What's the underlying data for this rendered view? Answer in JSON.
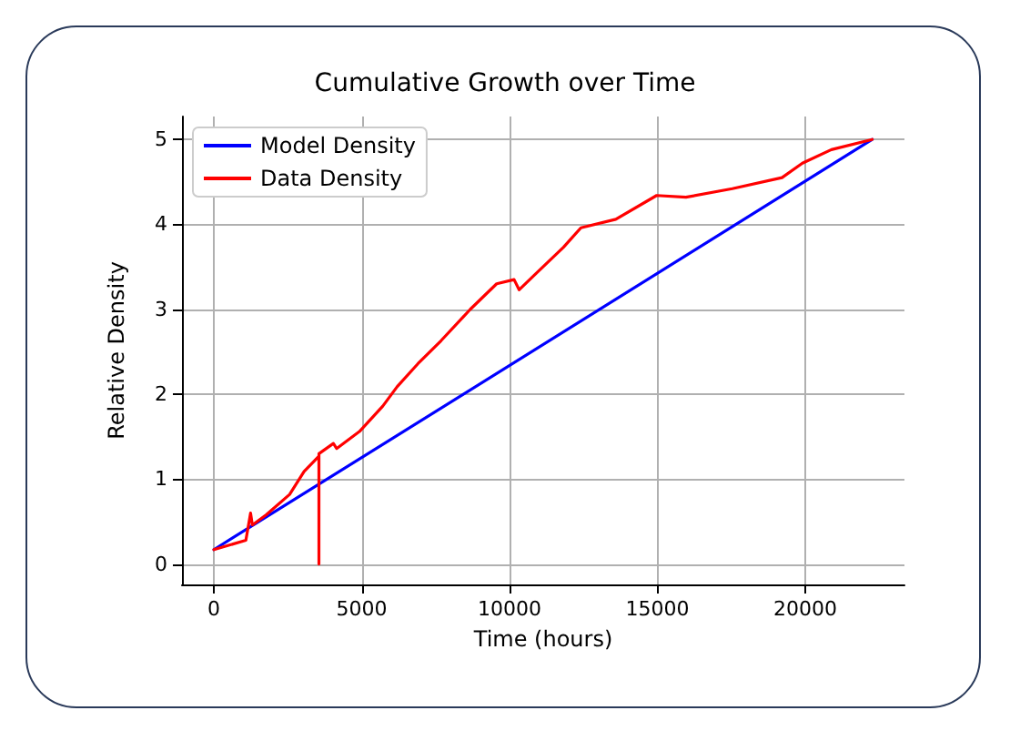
{
  "chart_data": {
    "type": "line",
    "title": "Cumulative Growth over Time",
    "xlabel": "Time (hours)",
    "ylabel": "Relative Density",
    "xlim": [
      -1080,
      23350
    ],
    "xticks": [
      0,
      5000,
      10000,
      15000,
      20000
    ],
    "ylim": [
      -0.24,
      5.27
    ],
    "yticks": [
      0,
      1,
      2,
      3,
      4,
      5
    ],
    "grid": true,
    "legend": "top left",
    "marker": "none",
    "line_style": "solid",
    "series": [
      {
        "name": "Model Density",
        "color": "#0000ff",
        "x": [
          0,
          22260
        ],
        "values": [
          0.17,
          5.0
        ]
      },
      {
        "name": "Data Density",
        "color": "#ff0000",
        "x": [
          0,
          1080,
          1240,
          1300,
          1770,
          2560,
          3050,
          3550,
          3551,
          3552,
          4040,
          4150,
          4920,
          5710,
          6200,
          6900,
          7680,
          8670,
          9560,
          10150,
          10320,
          10830,
          11820,
          12410,
          13590,
          14970,
          15960,
          17530,
          19210,
          19900,
          20880,
          22260
        ],
        "values": [
          0.17,
          0.28,
          0.6,
          0.46,
          0.58,
          0.82,
          1.09,
          1.27,
          0,
          1.3,
          1.42,
          1.36,
          1.56,
          1.86,
          2.09,
          2.36,
          2.63,
          3.0,
          3.3,
          3.35,
          3.23,
          3.4,
          3.73,
          3.96,
          4.06,
          4.34,
          4.32,
          4.42,
          4.55,
          4.72,
          4.88,
          5.0
        ]
      }
    ]
  }
}
